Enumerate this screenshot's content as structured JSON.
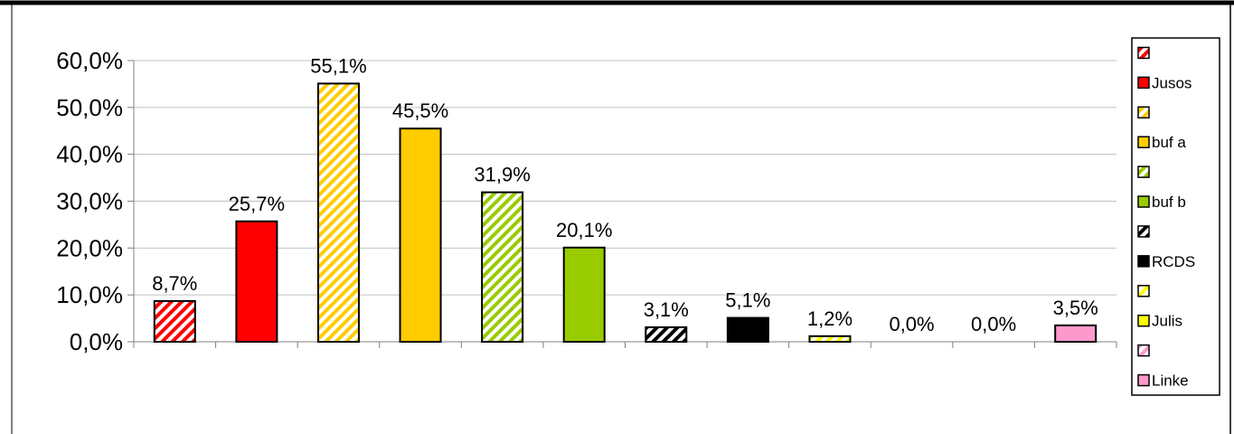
{
  "chart_data": {
    "type": "bar",
    "title": "",
    "xlabel": "",
    "ylabel": "",
    "ylim": [
      0,
      60
    ],
    "yticks": [
      "0,0%",
      "10,0%",
      "20,0%",
      "30,0%",
      "40,0%",
      "50,0%",
      "60,0%"
    ],
    "grid": true,
    "legend_position": "right",
    "categories": [
      "",
      "",
      "",
      "",
      "",
      "",
      "",
      "",
      "",
      "",
      "",
      ""
    ],
    "values": [
      8.7,
      25.7,
      55.1,
      45.5,
      31.9,
      20.1,
      3.1,
      5.1,
      1.2,
      0.0,
      0.0,
      3.5
    ],
    "data_labels": [
      "8,7%",
      "25,7%",
      "55,1%",
      "45,5%",
      "31,9%",
      "20,1%",
      "3,1%",
      "5,1%",
      "1,2%",
      "0,0%",
      "0,0%",
      "3,5%"
    ],
    "series_styles": [
      {
        "name": "",
        "color": "#ff0000",
        "pattern": "hatched"
      },
      {
        "name": "Jusos",
        "color": "#ff0000",
        "pattern": "solid"
      },
      {
        "name": "",
        "color": "#ffcc00",
        "pattern": "hatched"
      },
      {
        "name": "buf a",
        "color": "#ffcc00",
        "pattern": "solid"
      },
      {
        "name": "",
        "color": "#99cc00",
        "pattern": "hatched"
      },
      {
        "name": "buf b",
        "color": "#99cc00",
        "pattern": "solid"
      },
      {
        "name": "",
        "color": "#000000",
        "pattern": "hatched"
      },
      {
        "name": "RCDS",
        "color": "#000000",
        "pattern": "solid"
      },
      {
        "name": "",
        "color": "#ffff00",
        "pattern": "hatched"
      },
      {
        "name": "Julis",
        "color": "#ffff00",
        "pattern": "solid"
      },
      {
        "name": "",
        "color": "#ff99cc",
        "pattern": "hatched"
      },
      {
        "name": "Linke",
        "color": "#ff99cc",
        "pattern": "solid"
      }
    ]
  }
}
